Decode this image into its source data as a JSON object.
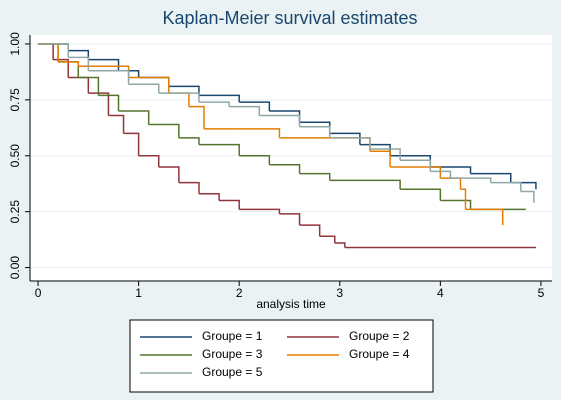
{
  "chart_data": {
    "type": "line",
    "step": true,
    "title": "Kaplan-Meier survival estimates",
    "x_label": "analysis time",
    "xlim": [
      -0.08,
      5.11
    ],
    "xticks": [
      0,
      1,
      2,
      3,
      4,
      5
    ],
    "ylim": [
      -0.06,
      1.04
    ],
    "yticks": [
      {
        "value": 0,
        "label": "0.00"
      },
      {
        "value": 0.25,
        "label": "0.25"
      },
      {
        "value": 0.5,
        "label": "0.50"
      },
      {
        "value": 0.75,
        "label": "0.75"
      },
      {
        "value": 1,
        "label": "1.00"
      }
    ],
    "grid": true,
    "legend": "bottom",
    "series": [
      {
        "name": "Groupe = 1",
        "color": "#1a476f",
        "x": [
          0,
          0.3,
          0.5,
          0.8,
          1.0,
          1.3,
          1.6,
          2.0,
          2.3,
          2.6,
          2.9,
          3.2,
          3.5,
          3.9,
          4.3,
          4.7,
          4.95
        ],
        "values": [
          1,
          0.97,
          0.93,
          0.88,
          0.85,
          0.81,
          0.77,
          0.74,
          0.7,
          0.65,
          0.6,
          0.55,
          0.5,
          0.45,
          0.42,
          0.38,
          0.35
        ]
      },
      {
        "name": "Groupe = 2",
        "color": "#90353b",
        "x": [
          0,
          0.15,
          0.3,
          0.5,
          0.7,
          0.85,
          1.0,
          1.2,
          1.4,
          1.6,
          1.8,
          2.0,
          2.4,
          2.6,
          2.8,
          2.95,
          3.05,
          4.95
        ],
        "values": [
          1,
          0.93,
          0.85,
          0.78,
          0.68,
          0.6,
          0.5,
          0.45,
          0.38,
          0.33,
          0.3,
          0.26,
          0.24,
          0.19,
          0.14,
          0.11,
          0.09,
          0.09
        ]
      },
      {
        "name": "Groupe = 3",
        "color": "#55752f",
        "x": [
          0,
          0.2,
          0.4,
          0.6,
          0.8,
          1.1,
          1.4,
          1.6,
          2.0,
          2.3,
          2.6,
          2.9,
          3.6,
          4.0,
          4.3,
          4.85
        ],
        "values": [
          1,
          0.92,
          0.85,
          0.77,
          0.7,
          0.64,
          0.58,
          0.55,
          0.5,
          0.46,
          0.42,
          0.39,
          0.35,
          0.3,
          0.26,
          0.26
        ]
      },
      {
        "name": "Groupe = 4",
        "color": "#e37e00",
        "x": [
          0,
          0.2,
          0.4,
          0.9,
          1.3,
          1.5,
          1.65,
          2.0,
          2.4,
          3.0,
          3.3,
          3.5,
          4.0,
          4.2,
          4.25,
          4.62
        ],
        "values": [
          1,
          0.92,
          0.9,
          0.85,
          0.78,
          0.72,
          0.62,
          0.62,
          0.58,
          0.58,
          0.52,
          0.45,
          0.4,
          0.35,
          0.26,
          0.19
        ]
      },
      {
        "name": "Groupe = 5",
        "color": "#8fa8a6",
        "x": [
          0,
          0.3,
          0.5,
          0.9,
          1.2,
          1.6,
          1.9,
          2.2,
          2.6,
          2.9,
          3.3,
          3.6,
          3.9,
          4.1,
          4.5,
          4.8,
          4.93
        ],
        "values": [
          1,
          0.94,
          0.88,
          0.82,
          0.78,
          0.74,
          0.72,
          0.68,
          0.63,
          0.58,
          0.53,
          0.48,
          0.43,
          0.4,
          0.38,
          0.34,
          0.29
        ]
      }
    ]
  }
}
